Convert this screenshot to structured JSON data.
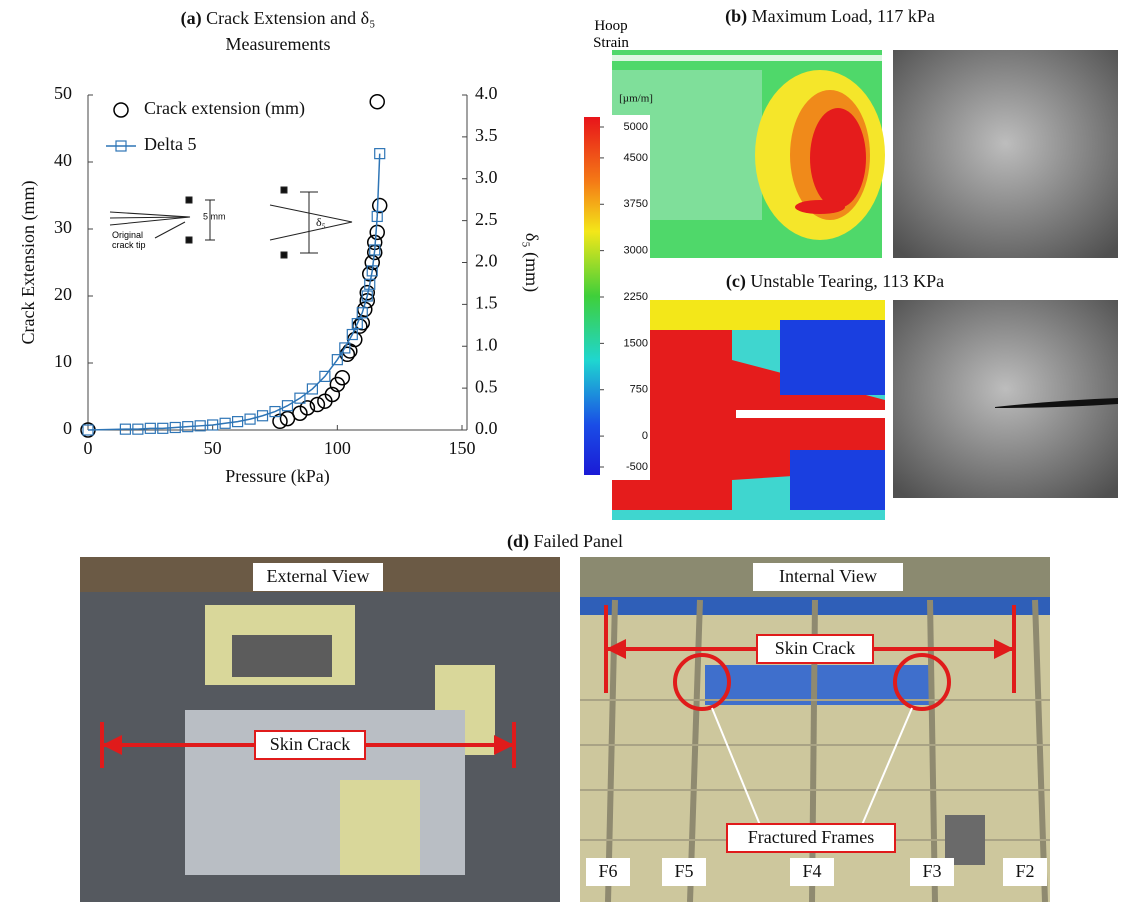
{
  "chart_data": {
    "type": "line",
    "label": "(a)",
    "title": "Crack Extension and δ₅",
    "subtitle": "Measurements",
    "xlabel": "Pressure (kPa)",
    "ylabel": "Crack Extension  (mm)",
    "y2label": "δ₅ (mm)",
    "xlim": [
      0,
      150
    ],
    "xticks": [
      0,
      50,
      100,
      150
    ],
    "ylim": [
      0,
      50
    ],
    "yticks": [
      0,
      10,
      20,
      30,
      40,
      50
    ],
    "y2lim": [
      0,
      4.0
    ],
    "y2ticks": [
      {
        "value": 0,
        "label": "0.0"
      },
      {
        "value": 0.5,
        "label": "0.5"
      },
      {
        "value": 1,
        "label": "1.0"
      },
      {
        "value": 1.5,
        "label": "1.5"
      },
      {
        "value": 2,
        "label": "2.0"
      },
      {
        "value": 2.5,
        "label": "2.5"
      },
      {
        "value": 3,
        "label": "3.0"
      },
      {
        "value": 3.5,
        "label": "3.5"
      },
      {
        "value": 4,
        "label": "4.0"
      }
    ],
    "legend": "upper left",
    "series": [
      {
        "name": "Crack extension (mm)",
        "color": "#000000",
        "marker": "circle",
        "line": false,
        "x": [
          0,
          77,
          80,
          85,
          88,
          92,
          95,
          98,
          100,
          102,
          104,
          105,
          107,
          109,
          110,
          111,
          112,
          112,
          113,
          114,
          115,
          115,
          116,
          117,
          116
        ],
        "values": [
          0,
          1.3,
          1.7,
          2.5,
          3.3,
          3.8,
          4.3,
          5.3,
          6.8,
          7.8,
          11.3,
          11.8,
          13.5,
          15.5,
          16,
          18,
          19.3,
          20.5,
          23.3,
          25,
          26.5,
          28,
          29.5,
          33.5,
          49
        ]
      },
      {
        "name": "Delta 5",
        "color": "#2e75b6",
        "marker": "square",
        "line": true,
        "axis": "y2",
        "x": [
          0,
          15,
          20,
          25,
          30,
          35,
          40,
          45,
          50,
          55,
          60,
          65,
          70,
          75,
          80,
          85,
          90,
          95,
          100,
          103,
          106,
          108,
          110,
          112,
          113,
          114,
          115,
          116,
          117
        ],
        "values": [
          0,
          0.01,
          0.01,
          0.02,
          0.02,
          0.03,
          0.04,
          0.05,
          0.06,
          0.08,
          0.1,
          0.13,
          0.17,
          0.22,
          0.29,
          0.38,
          0.49,
          0.64,
          0.84,
          0.98,
          1.14,
          1.27,
          1.4,
          1.6,
          1.74,
          1.9,
          2.15,
          2.55,
          3.3
        ]
      }
    ],
    "annotations": [
      "5 mm",
      "Original crack tip",
      "δ₅"
    ]
  },
  "panels": {
    "b": {
      "label": "(b)",
      "title": "Maximum Load, 117 kPa"
    },
    "c": {
      "label": "(c)",
      "title": "Unstable Tearing, 113 KPa"
    },
    "colorbar": {
      "title": "Hoop Strain",
      "unit": "[µm/m]",
      "ticks": [
        5000,
        4500,
        3750,
        3000,
        2250,
        1500,
        750,
        0,
        -500
      ],
      "lim": [
        -500,
        5000
      ]
    },
    "d": {
      "label": "(d)",
      "title": "Failed Panel",
      "external": {
        "view": "External View",
        "crack": "Skin Crack"
      },
      "internal": {
        "view": "Internal View",
        "crack": "Skin Crack",
        "frames": "Fractured Frames",
        "frame_labels": [
          "F6",
          "F5",
          "F4",
          "F3",
          "F2"
        ]
      }
    }
  }
}
